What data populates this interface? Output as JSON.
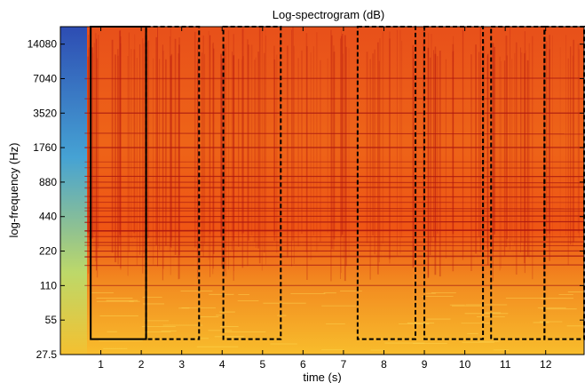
{
  "chart_data": {
    "type": "heatmap",
    "title": "Log-spectrogram (dB)",
    "xlabel": "time (s)",
    "ylabel": "log-frequency (Hz)",
    "xlim": [
      0,
      12.95
    ],
    "ylim": [
      27.5,
      20000
    ],
    "yscale": "log",
    "xticks": [
      1,
      2,
      3,
      4,
      5,
      6,
      7,
      8,
      9,
      10,
      11,
      12
    ],
    "yticks": [
      27.5,
      55,
      110,
      220,
      440,
      880,
      1760,
      3520,
      7040,
      14080
    ],
    "colormap": "jet",
    "colors": {
      "background_low": "#f7b428",
      "mid": "#ef5a14",
      "harmonic_lines": "#a01010",
      "quiet_onset": "#2a7ad8"
    },
    "regions": [
      {
        "style": "solid",
        "t_start": 0.75,
        "t_end": 2.12
      },
      {
        "style": "dashed",
        "t_start": 2.12,
        "t_end": 3.43
      },
      {
        "style": "dashed",
        "t_start": 4.03,
        "t_end": 5.45
      },
      {
        "style": "dashed",
        "t_start": 7.35,
        "t_end": 8.78
      },
      {
        "style": "dashed",
        "t_start": 9.0,
        "t_end": 10.45
      },
      {
        "style": "dashed",
        "t_start": 10.65,
        "t_end": 11.97
      },
      {
        "style": "dashed",
        "t_start": 11.97,
        "t_end": 12.95
      }
    ],
    "region_freq_range_hz": [
      37.5,
      20000
    ]
  }
}
